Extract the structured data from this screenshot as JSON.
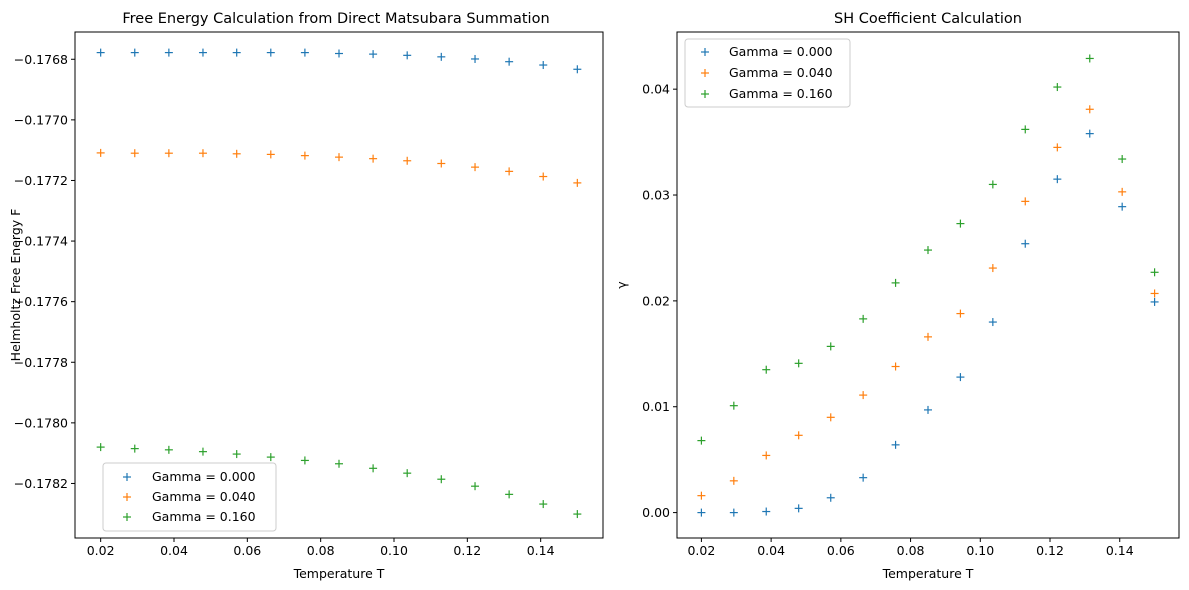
{
  "chart_data": [
    {
      "type": "scatter",
      "title": "Free Energy Calculation from Direct Matsubara Summation",
      "xlabel": "Temperature T",
      "ylabel": "Helmholtz Free Energy F",
      "xlim": [
        0.013,
        0.157
      ],
      "ylim": [
        -0.17838,
        -0.17671
      ],
      "xticks": [
        0.02,
        0.04,
        0.06,
        0.08,
        0.1,
        0.12,
        0.14
      ],
      "xtick_labels": [
        "0.02",
        "0.04",
        "0.06",
        "0.08",
        "0.10",
        "0.12",
        "0.14"
      ],
      "yticks": [
        -0.1782,
        -0.178,
        -0.1778,
        -0.1776,
        -0.1774,
        -0.1772,
        -0.177,
        -0.1768
      ],
      "ytick_labels": [
        "−0.1782",
        "−0.1780",
        "−0.1778",
        "−0.1776",
        "−0.1774",
        "−0.1772",
        "−0.1770",
        "−0.1768"
      ],
      "legend_position": "lower-left",
      "marker": "+",
      "grid": false,
      "x": [
        0.02,
        0.0293,
        0.0386,
        0.0479,
        0.0571,
        0.0664,
        0.0757,
        0.085,
        0.0943,
        0.1036,
        0.1129,
        0.1221,
        0.1314,
        0.1407,
        0.15
      ],
      "series": [
        {
          "name": "Gamma = 0.000",
          "color": "#1f77b4",
          "values": [
            -0.176778,
            -0.176778,
            -0.176778,
            -0.176778,
            -0.176778,
            -0.176778,
            -0.176778,
            -0.176781,
            -0.176783,
            -0.176787,
            -0.176792,
            -0.176799,
            -0.176808,
            -0.176819,
            -0.176833
          ]
        },
        {
          "name": "Gamma = 0.040",
          "color": "#ff7f0e",
          "values": [
            -0.177109,
            -0.17711,
            -0.17711,
            -0.17711,
            -0.177112,
            -0.177114,
            -0.177118,
            -0.177123,
            -0.177128,
            -0.177135,
            -0.177144,
            -0.177156,
            -0.17717,
            -0.177187,
            -0.177208
          ]
        },
        {
          "name": "Gamma = 0.160",
          "color": "#2ca02c",
          "values": [
            -0.17808,
            -0.178085,
            -0.178089,
            -0.178095,
            -0.178103,
            -0.178113,
            -0.178124,
            -0.178135,
            -0.17815,
            -0.178166,
            -0.178186,
            -0.178209,
            -0.178236,
            -0.178268,
            -0.178301
          ]
        }
      ]
    },
    {
      "type": "scatter",
      "title": "SH Coefficient Calculation",
      "xlabel": "Temperature T",
      "ylabel": "γ",
      "xlim": [
        0.013,
        0.157
      ],
      "ylim": [
        -0.0024,
        0.0454
      ],
      "xticks": [
        0.02,
        0.04,
        0.06,
        0.08,
        0.1,
        0.12,
        0.14
      ],
      "xtick_labels": [
        "0.02",
        "0.04",
        "0.06",
        "0.08",
        "0.10",
        "0.12",
        "0.14"
      ],
      "yticks": [
        0.0,
        0.01,
        0.02,
        0.03,
        0.04
      ],
      "ytick_labels": [
        "0.00",
        "0.01",
        "0.02",
        "0.03",
        "0.04"
      ],
      "legend_position": "upper-left",
      "marker": "+",
      "grid": false,
      "x": [
        0.02,
        0.0293,
        0.0386,
        0.0479,
        0.0571,
        0.0664,
        0.0757,
        0.085,
        0.0943,
        0.1036,
        0.1129,
        0.1221,
        0.1314,
        0.1407,
        0.15
      ],
      "series": [
        {
          "name": "Gamma = 0.000",
          "color": "#1f77b4",
          "values": [
            0.0,
            0.0,
            0.0001,
            0.0004,
            0.0014,
            0.0033,
            0.0064,
            0.0097,
            0.0128,
            0.018,
            0.0254,
            0.0315,
            0.0358,
            0.0289,
            0.0199
          ]
        },
        {
          "name": "Gamma = 0.040",
          "color": "#ff7f0e",
          "values": [
            0.0016,
            0.003,
            0.0054,
            0.0073,
            0.009,
            0.0111,
            0.0138,
            0.0166,
            0.0188,
            0.0231,
            0.0294,
            0.0345,
            0.0381,
            0.0303,
            0.0207
          ]
        },
        {
          "name": "Gamma = 0.160",
          "color": "#2ca02c",
          "values": [
            0.0068,
            0.0101,
            0.0135,
            0.0141,
            0.0157,
            0.0183,
            0.0217,
            0.0248,
            0.0273,
            0.031,
            0.0362,
            0.0402,
            0.0429,
            0.0334,
            0.0227
          ]
        }
      ]
    }
  ]
}
